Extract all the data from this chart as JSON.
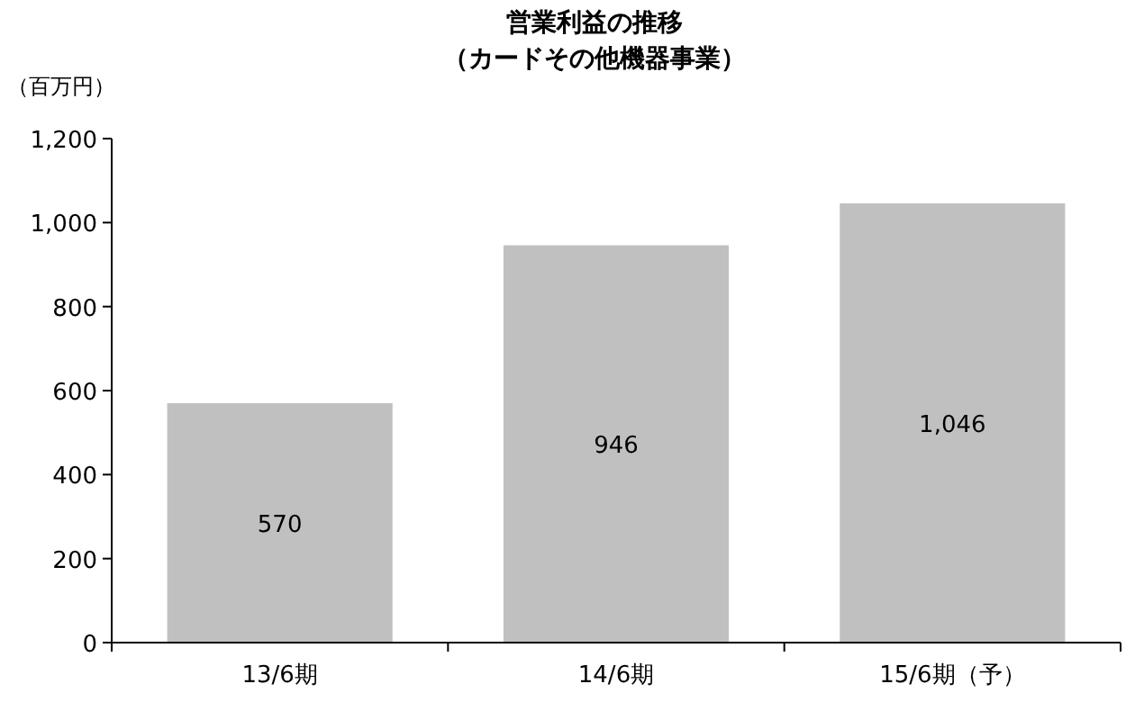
{
  "chart_data": {
    "type": "bar",
    "title": "営業利益の推移",
    "subtitle": "（カードその他機器事業）",
    "ylabel": "（百万円）",
    "categories": [
      "13/6期",
      "14/6期",
      "15/6期（予）"
    ],
    "values": [
      570,
      946,
      1046
    ],
    "value_labels": [
      "570",
      "946",
      "1,046"
    ],
    "color": "#c0c0c0",
    "ylim": [
      0,
      1200
    ],
    "yticks": [
      0,
      200,
      400,
      600,
      800,
      {
        "value": 1000,
        "label": "1,000"
      },
      {
        "value": 1200,
        "label": "1,200"
      }
    ],
    "grid": false
  }
}
